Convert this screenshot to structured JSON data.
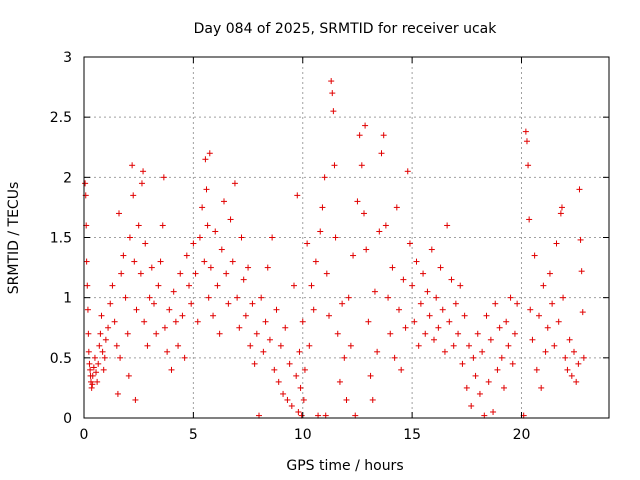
{
  "chart_data": {
    "type": "scatter",
    "title": "Day 084 of 2025, SRMTID for receiver ucak",
    "xlabel": "GPS time / hours",
    "ylabel": "SRMTID / TECUs",
    "xlim": [
      0,
      24
    ],
    "ylim": [
      0,
      3
    ],
    "x_ticks": [
      0,
      5,
      10,
      15,
      20
    ],
    "x_tick_labels": [
      "0",
      "5",
      "10",
      "15",
      "20"
    ],
    "y_ticks": [
      0,
      0.5,
      1,
      1.5,
      2,
      2.5,
      3
    ],
    "y_tick_labels": [
      "0",
      "0.5",
      "1",
      "1.5",
      "2",
      "2.5",
      "3"
    ],
    "grid": true,
    "legend": "none",
    "marker": "+",
    "series": [
      {
        "name": "SRMTID",
        "color": "#e00000",
        "points": [
          [
            0.05,
            1.95
          ],
          [
            0.08,
            1.85
          ],
          [
            0.1,
            1.6
          ],
          [
            0.12,
            1.3
          ],
          [
            0.15,
            1.1
          ],
          [
            0.18,
            0.9
          ],
          [
            0.2,
            0.7
          ],
          [
            0.22,
            0.55
          ],
          [
            0.25,
            0.45
          ],
          [
            0.28,
            0.4
          ],
          [
            0.3,
            0.35
          ],
          [
            0.32,
            0.3
          ],
          [
            0.35,
            0.25
          ],
          [
            0.38,
            0.28
          ],
          [
            0.4,
            0.35
          ],
          [
            0.45,
            0.42
          ],
          [
            0.5,
            0.5
          ],
          [
            0.55,
            0.38
          ],
          [
            0.6,
            0.3
          ],
          [
            0.65,
            0.45
          ],
          [
            0.7,
            0.6
          ],
          [
            0.75,
            0.7
          ],
          [
            0.8,
            0.85
          ],
          [
            0.85,
            0.55
          ],
          [
            0.9,
            0.4
          ],
          [
            0.95,
            0.5
          ],
          [
            1.0,
            0.65
          ],
          [
            1.1,
            0.75
          ],
          [
            1.2,
            0.95
          ],
          [
            1.3,
            1.1
          ],
          [
            1.4,
            0.8
          ],
          [
            1.5,
            0.6
          ],
          [
            1.55,
            0.2
          ],
          [
            1.6,
            1.7
          ],
          [
            1.65,
            0.5
          ],
          [
            1.7,
            1.2
          ],
          [
            1.8,
            1.35
          ],
          [
            1.9,
            1.0
          ],
          [
            2.0,
            0.7
          ],
          [
            2.05,
            0.35
          ],
          [
            2.1,
            1.5
          ],
          [
            2.2,
            2.1
          ],
          [
            2.25,
            1.85
          ],
          [
            2.3,
            1.3
          ],
          [
            2.35,
            0.15
          ],
          [
            2.4,
            0.9
          ],
          [
            2.5,
            1.6
          ],
          [
            2.6,
            1.2
          ],
          [
            2.65,
            1.95
          ],
          [
            2.7,
            2.05
          ],
          [
            2.75,
            0.8
          ],
          [
            2.8,
            1.45
          ],
          [
            2.9,
            0.6
          ],
          [
            3.0,
            1.0
          ],
          [
            3.1,
            1.25
          ],
          [
            3.2,
            0.95
          ],
          [
            3.3,
            0.7
          ],
          [
            3.4,
            1.1
          ],
          [
            3.5,
            1.3
          ],
          [
            3.6,
            1.6
          ],
          [
            3.65,
            2.0
          ],
          [
            3.7,
            0.75
          ],
          [
            3.8,
            0.55
          ],
          [
            3.9,
            0.9
          ],
          [
            4.0,
            0.4
          ],
          [
            4.1,
            1.05
          ],
          [
            4.2,
            0.8
          ],
          [
            4.3,
            0.6
          ],
          [
            4.4,
            1.2
          ],
          [
            4.5,
            0.85
          ],
          [
            4.6,
            0.5
          ],
          [
            4.7,
            1.35
          ],
          [
            4.8,
            1.1
          ],
          [
            4.9,
            0.95
          ],
          [
            5.0,
            1.45
          ],
          [
            5.1,
            1.2
          ],
          [
            5.2,
            0.8
          ],
          [
            5.3,
            1.5
          ],
          [
            5.4,
            1.75
          ],
          [
            5.5,
            1.3
          ],
          [
            5.55,
            2.15
          ],
          [
            5.6,
            1.9
          ],
          [
            5.65,
            1.6
          ],
          [
            5.7,
            1.0
          ],
          [
            5.75,
            2.2
          ],
          [
            5.8,
            1.25
          ],
          [
            5.9,
            0.85
          ],
          [
            6.0,
            1.55
          ],
          [
            6.1,
            1.1
          ],
          [
            6.2,
            0.7
          ],
          [
            6.3,
            1.4
          ],
          [
            6.4,
            1.8
          ],
          [
            6.5,
            1.2
          ],
          [
            6.6,
            0.95
          ],
          [
            6.7,
            1.65
          ],
          [
            6.8,
            1.3
          ],
          [
            6.9,
            1.95
          ],
          [
            7.0,
            1.0
          ],
          [
            7.1,
            0.75
          ],
          [
            7.2,
            1.5
          ],
          [
            7.3,
            1.15
          ],
          [
            7.4,
            0.85
          ],
          [
            7.5,
            1.25
          ],
          [
            7.6,
            0.6
          ],
          [
            7.7,
            0.95
          ],
          [
            7.8,
            0.45
          ],
          [
            7.9,
            0.7
          ],
          [
            8.0,
            0.02
          ],
          [
            8.1,
            1.0
          ],
          [
            8.2,
            0.55
          ],
          [
            8.3,
            0.8
          ],
          [
            8.4,
            1.25
          ],
          [
            8.5,
            0.65
          ],
          [
            8.6,
            1.5
          ],
          [
            8.7,
            0.4
          ],
          [
            8.8,
            0.9
          ],
          [
            8.9,
            0.3
          ],
          [
            9.0,
            0.6
          ],
          [
            9.1,
            0.2
          ],
          [
            9.2,
            0.75
          ],
          [
            9.3,
            0.15
          ],
          [
            9.4,
            0.45
          ],
          [
            9.5,
            0.1
          ],
          [
            9.6,
            1.1
          ],
          [
            9.7,
            0.35
          ],
          [
            9.75,
            1.85
          ],
          [
            9.8,
            0.05
          ],
          [
            9.85,
            0.55
          ],
          [
            9.9,
            0.25
          ],
          [
            9.95,
            0.02
          ],
          [
            10.0,
            0.8
          ],
          [
            10.05,
            0.15
          ],
          [
            10.1,
            0.4
          ],
          [
            10.2,
            1.45
          ],
          [
            10.3,
            0.6
          ],
          [
            10.4,
            1.1
          ],
          [
            10.5,
            0.9
          ],
          [
            10.6,
            1.3
          ],
          [
            10.7,
            0.02
          ],
          [
            10.8,
            1.55
          ],
          [
            10.9,
            1.75
          ],
          [
            11.0,
            2.0
          ],
          [
            11.05,
            0.02
          ],
          [
            11.1,
            1.2
          ],
          [
            11.2,
            0.85
          ],
          [
            11.3,
            2.8
          ],
          [
            11.35,
            2.7
          ],
          [
            11.4,
            2.55
          ],
          [
            11.45,
            2.1
          ],
          [
            11.5,
            1.5
          ],
          [
            11.6,
            0.7
          ],
          [
            11.7,
            0.3
          ],
          [
            11.8,
            0.95
          ],
          [
            11.9,
            0.5
          ],
          [
            12.0,
            0.15
          ],
          [
            12.1,
            1.0
          ],
          [
            12.2,
            0.6
          ],
          [
            12.3,
            1.35
          ],
          [
            12.4,
            0.02
          ],
          [
            12.5,
            1.8
          ],
          [
            12.6,
            2.35
          ],
          [
            12.7,
            2.1
          ],
          [
            12.8,
            1.7
          ],
          [
            12.85,
            2.43
          ],
          [
            12.9,
            1.4
          ],
          [
            13.0,
            0.8
          ],
          [
            13.1,
            0.35
          ],
          [
            13.2,
            0.15
          ],
          [
            13.3,
            1.05
          ],
          [
            13.4,
            0.55
          ],
          [
            13.5,
            1.55
          ],
          [
            13.6,
            2.2
          ],
          [
            13.7,
            2.35
          ],
          [
            13.8,
            1.6
          ],
          [
            13.9,
            1.0
          ],
          [
            14.0,
            0.7
          ],
          [
            14.1,
            1.25
          ],
          [
            14.2,
            0.5
          ],
          [
            14.3,
            1.75
          ],
          [
            14.4,
            0.9
          ],
          [
            14.5,
            0.4
          ],
          [
            14.6,
            1.15
          ],
          [
            14.7,
            0.75
          ],
          [
            14.8,
            2.05
          ],
          [
            14.9,
            1.45
          ],
          [
            15.0,
            1.1
          ],
          [
            15.1,
            0.8
          ],
          [
            15.2,
            1.3
          ],
          [
            15.3,
            0.6
          ],
          [
            15.4,
            0.95
          ],
          [
            15.5,
            1.2
          ],
          [
            15.6,
            0.7
          ],
          [
            15.7,
            1.05
          ],
          [
            15.8,
            0.85
          ],
          [
            15.9,
            1.4
          ],
          [
            16.0,
            0.65
          ],
          [
            16.1,
            1.0
          ],
          [
            16.2,
            0.75
          ],
          [
            16.3,
            1.25
          ],
          [
            16.4,
            0.9
          ],
          [
            16.5,
            0.55
          ],
          [
            16.6,
            1.6
          ],
          [
            16.7,
            0.8
          ],
          [
            16.8,
            1.15
          ],
          [
            16.9,
            0.6
          ],
          [
            17.0,
            0.95
          ],
          [
            17.1,
            0.7
          ],
          [
            17.2,
            1.1
          ],
          [
            17.3,
            0.45
          ],
          [
            17.4,
            0.85
          ],
          [
            17.5,
            0.25
          ],
          [
            17.6,
            0.6
          ],
          [
            17.7,
            0.1
          ],
          [
            17.8,
            0.5
          ],
          [
            17.9,
            0.35
          ],
          [
            18.0,
            0.7
          ],
          [
            18.1,
            0.2
          ],
          [
            18.2,
            0.55
          ],
          [
            18.3,
            0.02
          ],
          [
            18.4,
            0.85
          ],
          [
            18.5,
            0.3
          ],
          [
            18.6,
            0.65
          ],
          [
            18.7,
            0.05
          ],
          [
            18.8,
            0.95
          ],
          [
            18.9,
            0.4
          ],
          [
            19.0,
            0.75
          ],
          [
            19.1,
            0.5
          ],
          [
            19.2,
            0.25
          ],
          [
            19.3,
            0.8
          ],
          [
            19.4,
            0.6
          ],
          [
            19.5,
            1.0
          ],
          [
            19.6,
            0.45
          ],
          [
            19.7,
            0.7
          ],
          [
            19.8,
            0.95
          ],
          [
            20.1,
            0.02
          ],
          [
            20.2,
            2.38
          ],
          [
            20.25,
            2.3
          ],
          [
            20.3,
            2.1
          ],
          [
            20.35,
            1.65
          ],
          [
            20.4,
            0.9
          ],
          [
            20.5,
            0.65
          ],
          [
            20.6,
            1.35
          ],
          [
            20.7,
            0.4
          ],
          [
            20.8,
            0.85
          ],
          [
            20.9,
            0.25
          ],
          [
            21.0,
            1.1
          ],
          [
            21.1,
            0.55
          ],
          [
            21.2,
            0.75
          ],
          [
            21.3,
            1.2
          ],
          [
            21.4,
            0.95
          ],
          [
            21.5,
            0.6
          ],
          [
            21.6,
            1.45
          ],
          [
            21.7,
            0.8
          ],
          [
            21.8,
            1.7
          ],
          [
            21.85,
            1.75
          ],
          [
            21.9,
            1.0
          ],
          [
            22.0,
            0.5
          ],
          [
            22.1,
            0.4
          ],
          [
            22.2,
            0.65
          ],
          [
            22.3,
            0.35
          ],
          [
            22.4,
            0.55
          ],
          [
            22.5,
            0.3
          ],
          [
            22.6,
            0.45
          ],
          [
            22.65,
            1.9
          ],
          [
            22.7,
            1.48
          ],
          [
            22.75,
            1.22
          ],
          [
            22.8,
            0.88
          ],
          [
            22.85,
            0.5
          ]
        ]
      }
    ]
  }
}
